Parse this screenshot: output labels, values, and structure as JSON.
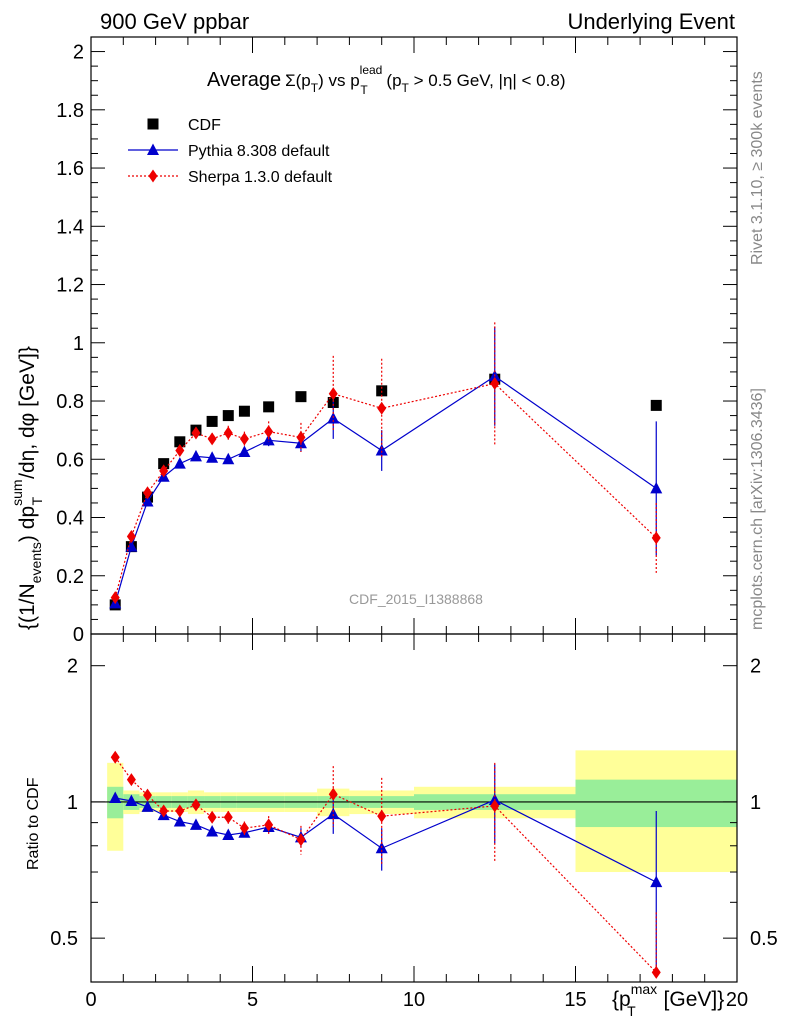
{
  "header": {
    "left": "900 GeV ppbar",
    "right": "Underlying Event"
  },
  "plot_title": {
    "prefix": "Average",
    "sigma": "Σ(p",
    "sigma_sub": "T",
    "mid": ") vs p",
    "mid_sup": "lead",
    "mid_sub": "T",
    "cut_open": " (p",
    "cut_sub": "T",
    "cut_rest": " > 0.5 GeV, |η| < 0.8)"
  },
  "side": {
    "rivet": "Rivet 3.1.10, ≥ 300k events",
    "mcplots": "mcplots.cern.ch [arXiv:1306.3436]"
  },
  "analysis_id": "CDF_2015_I1388868",
  "axes": {
    "ylabel_main": "{(1/N_events) dp_T^sum/dη, dφ [GeV]}",
    "ylabel_main_parts": {
      "a": "{(1/N",
      "a_sub": "events",
      "b": ") dp",
      "b_sup": "sum",
      "b_sub": "T",
      "c": "/dη, dφ [GeV]}"
    },
    "ylabel_ratio": "Ratio to CDF",
    "xlabel_parts": {
      "a": "{p",
      "a_sup": "max",
      "a_sub": "T",
      "b": " [GeV]}"
    },
    "main_yticks": [
      "0",
      "0.2",
      "0.4",
      "0.6",
      "0.8",
      "1",
      "1.2",
      "1.4",
      "1.6",
      "1.8",
      "2"
    ],
    "ratio_yticks": [
      "0.5",
      "1",
      "2"
    ],
    "xticks": [
      "0",
      "5",
      "10",
      "15",
      "20"
    ]
  },
  "legend": [
    {
      "name": "CDF",
      "color": "#000000",
      "marker": "square"
    },
    {
      "name": "Pythia 8.308 default",
      "color": "#0000cc",
      "marker": "triangle"
    },
    {
      "name": "Sherpa 1.3.0 default",
      "color": "#ee0000",
      "marker": "diamond"
    }
  ],
  "chart_data": {
    "type": "scatter",
    "xlim": [
      0,
      20
    ],
    "ylim_main": [
      0,
      2.05
    ],
    "ylim_ratio": [
      0.4,
      2.35
    ],
    "ratio_log_scale": true,
    "grid": false,
    "legend_position": "top-left",
    "series": [
      {
        "name": "CDF",
        "x": [
          0.75,
          1.25,
          1.75,
          2.25,
          2.75,
          3.25,
          3.75,
          4.25,
          4.75,
          5.5,
          6.5,
          7.5,
          9.0,
          12.5,
          17.5
        ],
        "y": [
          0.1,
          0.3,
          0.47,
          0.585,
          0.66,
          0.7,
          0.73,
          0.75,
          0.765,
          0.78,
          0.815,
          0.795,
          0.835,
          0.875,
          0.785
        ]
      },
      {
        "name": "Pythia 8.308 default",
        "x": [
          0.75,
          1.25,
          1.75,
          2.25,
          2.75,
          3.25,
          3.75,
          4.25,
          4.75,
          5.5,
          6.5,
          7.5,
          9.0,
          12.5,
          17.5
        ],
        "y": [
          0.105,
          0.3,
          0.455,
          0.54,
          0.585,
          0.61,
          0.605,
          0.6,
          0.625,
          0.665,
          0.655,
          0.74,
          0.63,
          0.885,
          0.5
        ],
        "err": [
          0.005,
          0.005,
          0.008,
          0.008,
          0.01,
          0.01,
          0.012,
          0.015,
          0.015,
          0.02,
          0.03,
          0.07,
          0.07,
          0.17,
          0.23
        ],
        "ratio": [
          1.02,
          1.005,
          0.975,
          0.935,
          0.905,
          0.89,
          0.86,
          0.845,
          0.855,
          0.88,
          0.835,
          0.94,
          0.79,
          1.01,
          0.665
        ],
        "ratio_err": [
          0.01,
          0.01,
          0.01,
          0.012,
          0.013,
          0.013,
          0.015,
          0.02,
          0.02,
          0.025,
          0.04,
          0.09,
          0.085,
          0.2,
          0.29
        ]
      },
      {
        "name": "Sherpa 1.3.0 default",
        "x": [
          0.75,
          1.25,
          1.75,
          2.25,
          2.75,
          3.25,
          3.75,
          4.25,
          4.75,
          5.5,
          6.5,
          7.5,
          9.0,
          12.5,
          17.5
        ],
        "y": [
          0.125,
          0.335,
          0.485,
          0.56,
          0.63,
          0.69,
          0.67,
          0.69,
          0.67,
          0.695,
          0.675,
          0.825,
          0.775,
          0.86,
          0.33
        ],
        "err": [
          0.005,
          0.008,
          0.01,
          0.01,
          0.015,
          0.02,
          0.02,
          0.025,
          0.025,
          0.035,
          0.05,
          0.13,
          0.17,
          0.21,
          0.12
        ],
        "ratio": [
          1.255,
          1.12,
          1.035,
          0.955,
          0.955,
          0.985,
          0.925,
          0.925,
          0.875,
          0.89,
          0.825,
          1.04,
          0.93,
          0.98,
          0.42
        ],
        "ratio_err": [
          0.01,
          0.012,
          0.015,
          0.015,
          0.02,
          0.025,
          0.025,
          0.03,
          0.03,
          0.04,
          0.06,
          0.16,
          0.2,
          0.24,
          0.15
        ]
      }
    ],
    "cdf_bands": {
      "x_edges": [
        0.5,
        1.0,
        1.5,
        2.0,
        2.5,
        3.0,
        3.5,
        4.0,
        4.5,
        5.0,
        6.0,
        7.0,
        8.0,
        10.0,
        15.0,
        20.0
      ],
      "stat": [
        0.08,
        0.04,
        0.03,
        0.03,
        0.03,
        0.03,
        0.03,
        0.03,
        0.03,
        0.03,
        0.03,
        0.03,
        0.03,
        0.04,
        0.12
      ],
      "total": [
        0.22,
        0.06,
        0.05,
        0.05,
        0.05,
        0.06,
        0.05,
        0.05,
        0.05,
        0.05,
        0.05,
        0.07,
        0.06,
        0.08,
        0.3
      ]
    }
  }
}
